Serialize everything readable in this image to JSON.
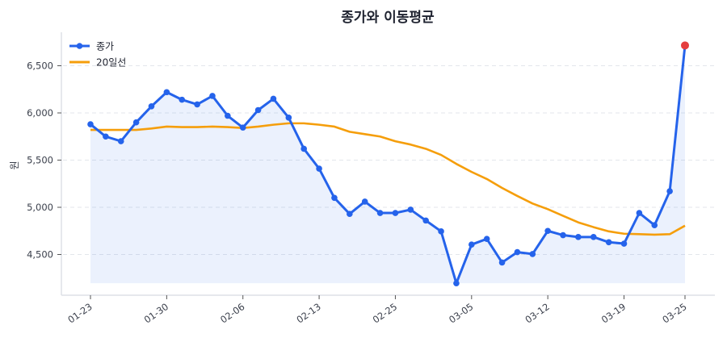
{
  "chart_data": {
    "type": "line",
    "title": "종가와 이동평균",
    "xlabel": "",
    "ylabel": "원",
    "ylim": [
      4130,
      6850
    ],
    "yticks": [
      4500,
      5000,
      5500,
      6000,
      6500
    ],
    "ytick_labels": [
      "4,500",
      "5,000",
      "5,500",
      "6,000",
      "6,500"
    ],
    "xtick_labels": [
      "01-23",
      "01-30",
      "02-06",
      "02-13",
      "02-25",
      "03-05",
      "03-12",
      "03-19",
      "03-25"
    ],
    "xtick_indices": [
      0,
      5,
      10,
      15,
      20,
      25,
      30,
      35,
      39
    ],
    "grid": true,
    "legend_position": "upper left",
    "series": [
      {
        "name": "종가",
        "color": "#2563eb",
        "marker": "circle",
        "fill": true,
        "values": [
          5880,
          5750,
          5700,
          5900,
          6070,
          6220,
          6140,
          6090,
          6180,
          5970,
          5845,
          6030,
          6150,
          5950,
          5620,
          5410,
          5100,
          4930,
          5060,
          4940,
          4940,
          4975,
          4860,
          4745,
          4195,
          4605,
          4665,
          4415,
          4525,
          4505,
          4750,
          4705,
          4685,
          4685,
          4630,
          4615,
          4940,
          4810,
          5170,
          6715
        ]
      },
      {
        "name": "20일선",
        "color": "#f59e0b",
        "marker": "none",
        "fill": false,
        "values": [
          5820,
          5820,
          5820,
          5820,
          5835,
          5855,
          5850,
          5850,
          5855,
          5850,
          5840,
          5855,
          5875,
          5890,
          5890,
          5875,
          5855,
          5800,
          5775,
          5750,
          5700,
          5665,
          5620,
          5555,
          5460,
          5375,
          5300,
          5205,
          5120,
          5040,
          4980,
          4910,
          4840,
          4790,
          4745,
          4720,
          4715,
          4710,
          4715,
          4805
        ]
      }
    ],
    "highlight_last_point": {
      "color": "#e53e3e",
      "value": 6715,
      "label": "03-25"
    }
  },
  "legend": {
    "items": [
      {
        "label": "종가",
        "color": "#2563eb"
      },
      {
        "label": "20일선",
        "color": "#f59e0b"
      }
    ]
  }
}
